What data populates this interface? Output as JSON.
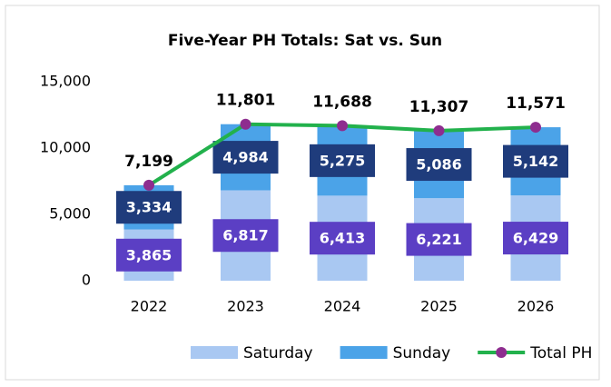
{
  "chart_data": {
    "type": "bar",
    "title": "Five-Year PH Totals: Sat vs. Sun",
    "categories": [
      "2022",
      "2023",
      "2024",
      "2025",
      "2026"
    ],
    "series": [
      {
        "name": "Saturday",
        "color": "#a9c8f2",
        "values": [
          3865,
          6817,
          6413,
          6221,
          6429
        ],
        "value_labels": [
          "3,865",
          "6,817",
          "6,413",
          "6,221",
          "6,429"
        ],
        "label_box": "#5b3fc4"
      },
      {
        "name": "Sunday",
        "color": "#4ba3e8",
        "values": [
          3334,
          4984,
          5275,
          5086,
          5142
        ],
        "value_labels": [
          "3,334",
          "4,984",
          "5,275",
          "5,086",
          "5,142"
        ],
        "label_box": "#1f3c7c"
      },
      {
        "name": "Total PH",
        "type": "line",
        "color": "#22b14c",
        "marker_color": "#8e2d8f",
        "values": [
          7199,
          11801,
          11688,
          11307,
          11571
        ],
        "value_labels": [
          "7,199",
          "11,801",
          "11,688",
          "11,307",
          "11,571"
        ]
      }
    ],
    "ylim": [
      0,
      15000
    ],
    "yticks": [
      0,
      {
        "value": 5000,
        "label": "5,000"
      },
      {
        "value": 10000,
        "label": "10,000"
      },
      {
        "value": 15000,
        "label": "15,000"
      }
    ],
    "grid": false,
    "legend": "bottom"
  }
}
